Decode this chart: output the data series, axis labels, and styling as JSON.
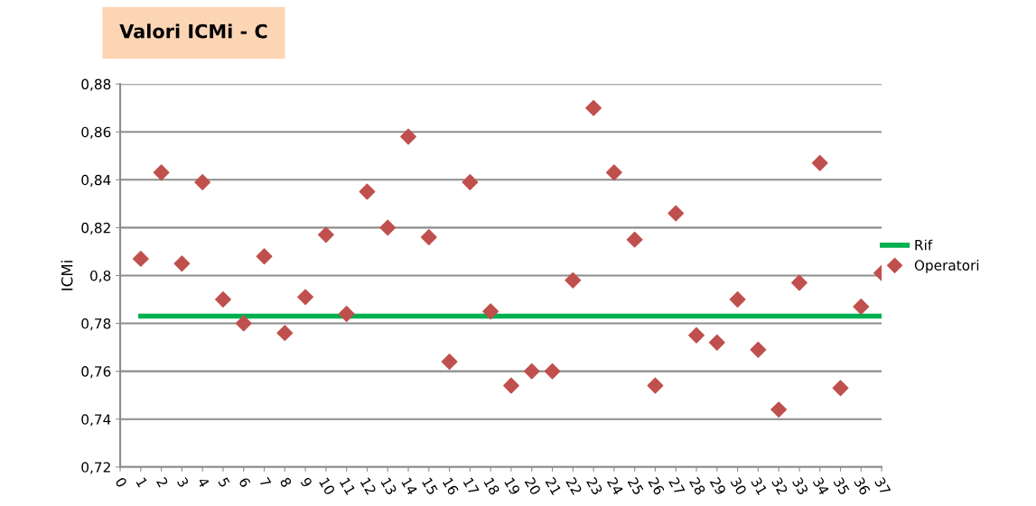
{
  "chart_data": {
    "type": "scatter",
    "title": "Valori ICMi - C",
    "ylabel": "ICMi",
    "xlim": [
      0,
      37
    ],
    "xticks": [
      0,
      1,
      2,
      3,
      4,
      5,
      6,
      7,
      8,
      9,
      10,
      11,
      12,
      13,
      14,
      15,
      16,
      17,
      18,
      19,
      20,
      21,
      22,
      23,
      24,
      25,
      26,
      27,
      28,
      29,
      30,
      31,
      32,
      33,
      34,
      35,
      36,
      37
    ],
    "ylim": [
      0.72,
      0.88
    ],
    "yticks": [
      {
        "value": 0.72,
        "label": "0,72"
      },
      {
        "value": 0.74,
        "label": "0,74"
      },
      {
        "value": 0.76,
        "label": "0,76"
      },
      {
        "value": 0.78,
        "label": "0,78"
      },
      {
        "value": 0.8,
        "label": "0,8"
      },
      {
        "value": 0.82,
        "label": "0,82"
      },
      {
        "value": 0.84,
        "label": "0,84"
      },
      {
        "value": 0.86,
        "label": "0,86"
      },
      {
        "value": 0.88,
        "label": "0,88"
      }
    ],
    "grid": "y",
    "legend": "right",
    "series": [
      {
        "name": "Rif",
        "type": "line",
        "color": "#00b050",
        "line_style": "solid",
        "marker": "none",
        "x": [
          1,
          37
        ],
        "values": [
          0.783,
          0.783
        ]
      },
      {
        "name": "Operatori",
        "color": "#c0504d",
        "marker": "diamond",
        "x": [
          1,
          2,
          3,
          4,
          5,
          6,
          7,
          8,
          9,
          10,
          11,
          12,
          13,
          14,
          15,
          16,
          17,
          18,
          19,
          20,
          21,
          22,
          23,
          24,
          25,
          26,
          27,
          28,
          29,
          30,
          31,
          32,
          33,
          34,
          35,
          36,
          37
        ],
        "values": [
          0.807,
          0.843,
          0.805,
          0.839,
          0.79,
          0.78,
          0.808,
          0.776,
          0.791,
          0.817,
          0.784,
          0.835,
          0.82,
          0.858,
          0.816,
          0.764,
          0.839,
          0.785,
          0.754,
          0.76,
          0.76,
          0.798,
          0.87,
          0.843,
          0.815,
          0.754,
          0.826,
          0.775,
          0.772,
          0.79,
          0.769,
          0.744,
          0.797,
          0.847,
          0.753,
          0.787,
          0.801
        ]
      }
    ]
  }
}
